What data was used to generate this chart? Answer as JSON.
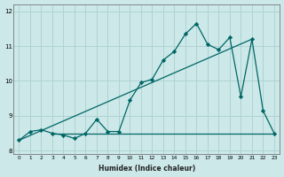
{
  "xlabel": "Humidex (Indice chaleur)",
  "bg_color": "#cce8e8",
  "grid_color": "#aacfcf",
  "line_color": "#006666",
  "xlim_min": -0.5,
  "xlim_max": 23.5,
  "ylim_min": 7.9,
  "ylim_max": 12.2,
  "yticks": [
    8,
    9,
    10,
    11,
    12
  ],
  "ytick_labels": [
    "8",
    "9",
    "10",
    "11",
    "12"
  ],
  "xticks": [
    0,
    1,
    2,
    3,
    4,
    5,
    6,
    7,
    8,
    9,
    10,
    11,
    12,
    13,
    14,
    15,
    16,
    17,
    18,
    19,
    20,
    21,
    22,
    23
  ],
  "series1_x": [
    0,
    1,
    2,
    3,
    4,
    5,
    6,
    7,
    8,
    9,
    10,
    11,
    12,
    13,
    14,
    15,
    16,
    17,
    18,
    19,
    20,
    21,
    22,
    23
  ],
  "series1_y": [
    8.3,
    8.55,
    8.6,
    8.5,
    8.45,
    8.35,
    8.5,
    8.9,
    8.55,
    8.55,
    9.45,
    9.95,
    10.05,
    10.6,
    10.85,
    11.35,
    11.65,
    11.05,
    10.9,
    11.25,
    9.55,
    11.2,
    9.15,
    8.5
  ],
  "series2_x": [
    3,
    4,
    5,
    6,
    7,
    8,
    9,
    10,
    11,
    12,
    13,
    14,
    15,
    16,
    17,
    18,
    19,
    20,
    21,
    22,
    23
  ],
  "series2_y": [
    8.5,
    8.5,
    8.5,
    8.5,
    8.5,
    8.5,
    8.5,
    8.5,
    8.5,
    8.5,
    8.5,
    8.5,
    8.5,
    8.5,
    8.5,
    8.5,
    8.5,
    8.5,
    8.5,
    8.5,
    8.5
  ],
  "series3_x": [
    0,
    21
  ],
  "series3_y": [
    8.3,
    11.2
  ]
}
